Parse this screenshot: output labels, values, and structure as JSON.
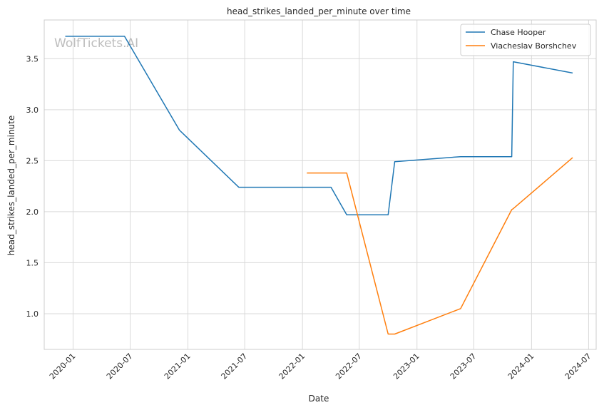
{
  "chart_data": {
    "type": "line",
    "title": "head_strikes_landed_per_minute over time",
    "xlabel": "Date",
    "ylabel": "head_strikes_landed_per_minute",
    "x_ticks": [
      "2020-01",
      "2020-07",
      "2021-01",
      "2021-07",
      "2022-01",
      "2022-07",
      "2023-01",
      "2023-07",
      "2024-01",
      "2024-07"
    ],
    "y_ticks": [
      1.0,
      1.5,
      2.0,
      2.5,
      3.0,
      3.5
    ],
    "xlim": [
      "2019-10-01",
      "2024-07-25"
    ],
    "ylim": [
      0.65,
      3.88
    ],
    "grid": true,
    "legend_position": "top-right",
    "watermark": "WolfTickets.AI",
    "series": [
      {
        "name": "Chase Hooper",
        "color": "#1f77b4",
        "x": [
          "2019-12-07",
          "2020-06-13",
          "2020-12-05",
          "2021-06-12",
          "2022-04-02",
          "2022-05-22",
          "2022-10-01",
          "2022-10-22",
          "2023-05-20",
          "2023-10-30",
          "2023-11-04",
          "2024-05-11"
        ],
        "y": [
          3.72,
          3.72,
          2.8,
          2.24,
          2.24,
          1.97,
          1.97,
          2.49,
          2.54,
          2.54,
          3.47,
          3.36
        ]
      },
      {
        "name": "Viacheslav Borshchev",
        "color": "#ff7f0e",
        "x": [
          "2022-01-15",
          "2022-05-22",
          "2022-10-01",
          "2022-10-22",
          "2023-05-20",
          "2023-10-30",
          "2023-11-04",
          "2024-05-11"
        ],
        "y": [
          2.38,
          2.38,
          0.8,
          0.8,
          1.05,
          2.02,
          2.03,
          2.53
        ]
      }
    ]
  }
}
